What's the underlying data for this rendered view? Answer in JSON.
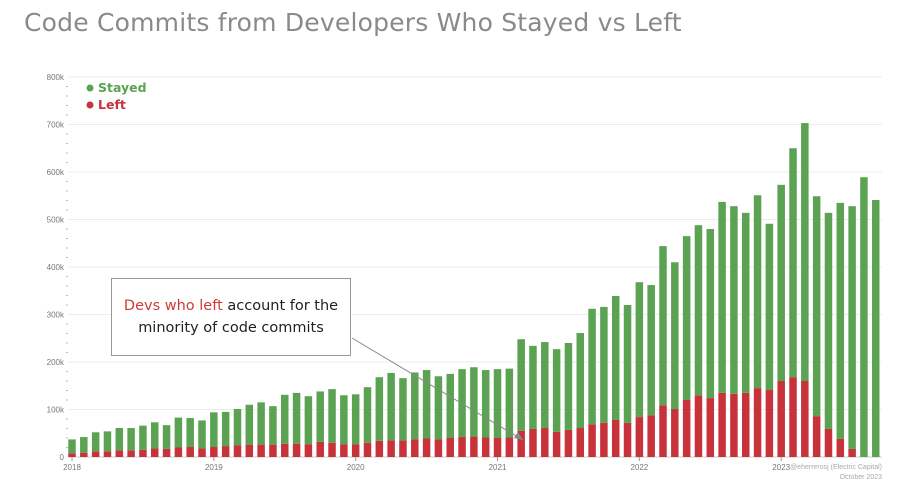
{
  "title": "Code Commits from Developers Who Stayed vs Left",
  "annotation": {
    "highlight": "Devs who left",
    "rest_line1": " account for the",
    "line2": "minority of code commits"
  },
  "credit": {
    "line1": "@eherrerosj (Electric Capital)",
    "line2": "October 2023"
  },
  "colors": {
    "stayed": "#5ba353",
    "left": "#c8323a"
  },
  "chart_data": {
    "type": "bar",
    "stacked": true,
    "title": "Code Commits from Developers Who Stayed vs Left",
    "xlabel": "",
    "ylabel": "",
    "ylim": [
      0,
      800000
    ],
    "yticks": [
      "0",
      "100k",
      "200k",
      "300k",
      "400k",
      "500k",
      "600k",
      "700k",
      "800k"
    ],
    "xticks": [
      "2018",
      "2019",
      "2020",
      "2021",
      "2022",
      "2023"
    ],
    "grid": true,
    "legend": "top-left",
    "x_start": "2018-01",
    "x_interval": "month",
    "series": [
      {
        "name": "Stayed",
        "color": "#5ba353",
        "values": [
          29000,
          33000,
          40000,
          42000,
          47000,
          47000,
          51000,
          55000,
          50000,
          63000,
          61000,
          59000,
          73000,
          72000,
          76000,
          84000,
          89000,
          81000,
          103000,
          107000,
          101000,
          106000,
          113000,
          103000,
          105000,
          117000,
          134000,
          142000,
          131000,
          141000,
          144000,
          133000,
          135000,
          143000,
          146000,
          142000,
          145000,
          145000,
          193000,
          175000,
          181000,
          174000,
          183000,
          200000,
          243000,
          244000,
          261000,
          248000,
          284000,
          274000,
          335000,
          309000,
          345000,
          358000,
          356000,
          402000,
          395000,
          379000,
          406000,
          350000,
          413000,
          482000,
          543000,
          463000,
          455000,
          497000,
          511000,
          589000,
          541000
        ]
      },
      {
        "name": "Left",
        "color": "#c8323a",
        "values": [
          8000,
          9000,
          12000,
          12000,
          14000,
          14000,
          15000,
          18000,
          17000,
          20000,
          21000,
          18000,
          21000,
          23000,
          25000,
          26000,
          26000,
          26000,
          28000,
          28000,
          27000,
          32000,
          30000,
          27000,
          27000,
          30000,
          34000,
          35000,
          35000,
          37000,
          39000,
          37000,
          40000,
          42000,
          43000,
          41000,
          40000,
          41000,
          55000,
          59000,
          61000,
          53000,
          57000,
          61000,
          69000,
          72000,
          78000,
          72000,
          84000,
          88000,
          109000,
          101000,
          120000,
          130000,
          124000,
          135000,
          133000,
          135000,
          145000,
          141000,
          160000,
          168000,
          160000,
          86000,
          59000,
          38000,
          17000,
          0,
          0
        ]
      }
    ]
  }
}
